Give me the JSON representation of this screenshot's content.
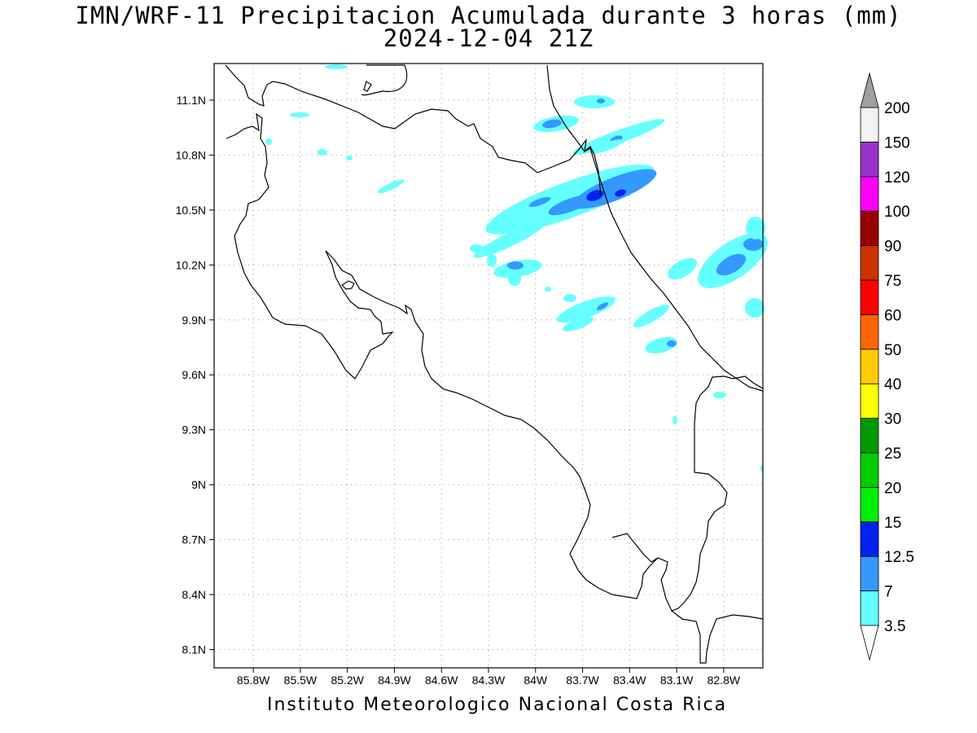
{
  "title_line1": "IMN/WRF-11 Precipitacion Acumulada durante 3 horas (mm)",
  "title_line2": "2024-12-04 21Z",
  "footer": "Instituto Meteorologico Nacional Costa Rica",
  "map": {
    "lon_range": [
      -86.05,
      -82.55
    ],
    "lat_range": [
      8.0,
      11.3
    ],
    "lat_ticks": [
      "11.1N",
      "10.8N",
      "10.5N",
      "10.2N",
      "9.9N",
      "9.6N",
      "9.3N",
      "9N",
      "8.7N",
      "8.4N",
      "8.1N"
    ],
    "lon_ticks": [
      "85.8W",
      "85.5W",
      "85.2W",
      "84.9W",
      "84.6W",
      "84.3W",
      "84W",
      "83.7W",
      "83.4W",
      "83.1W",
      "82.8W"
    ],
    "grid": "dotted"
  },
  "colorbar": {
    "levels": [
      "3.5",
      "7",
      "12.5",
      "15",
      "20",
      "25",
      "30",
      "40",
      "50",
      "60",
      "75",
      "90",
      "100",
      "120",
      "150",
      "200"
    ],
    "colors": [
      "#66ffff",
      "#3399ff",
      "#0022ee",
      "#0000ff",
      "#00ee00",
      "#00cc00",
      "#009900",
      "#ffff00",
      "#ffcc00",
      "#ff6600",
      "#ff0000",
      "#cc3300",
      "#990000",
      "#ff00ff",
      "#9933cc",
      "#f2f2f2",
      "#a0a0a0"
    ],
    "bin_colors_bottom_to_top": [
      "#66ffff",
      "#3399ff",
      "#0022ee",
      "#00ee00",
      "#00cc00",
      "#009900",
      "#ffff00",
      "#ffcc00",
      "#ff6600",
      "#ff0000",
      "#cc3300",
      "#990000",
      "#ff00ff",
      "#9933cc",
      "#f2f2f2"
    ]
  }
}
